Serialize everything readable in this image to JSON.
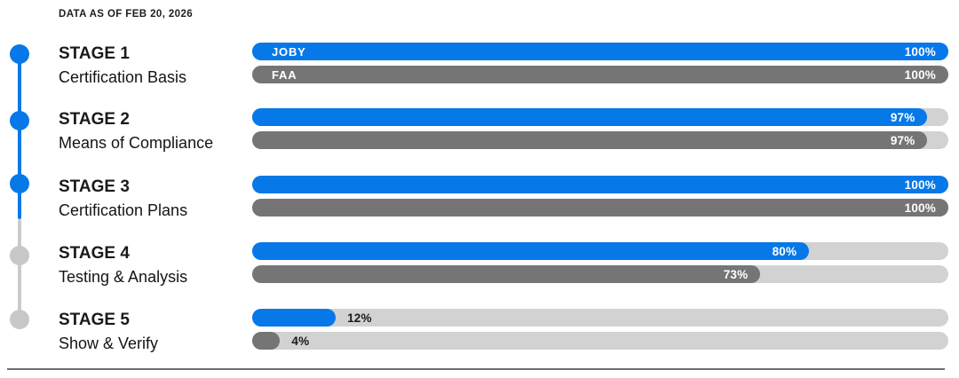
{
  "header": {
    "data_as_of": "DATA AS OF FEB 20, 2026"
  },
  "legend": {
    "joby": "JOBY",
    "faa": "FAA"
  },
  "colors": {
    "joby_bar": "#0778e8",
    "faa_bar": "#757575",
    "track": "#d2d2d2",
    "active_dot": "#0778e8",
    "inactive_dot": "#c7c7c9",
    "text": "#1a1a1a"
  },
  "chart_data": {
    "type": "bar",
    "orientation": "horizontal",
    "title": "DATA AS OF FEB 20, 2026",
    "categories": [
      "STAGE 1 — Certification Basis",
      "STAGE 2 — Means of Compliance",
      "STAGE 3 — Certification Plans",
      "STAGE 4 — Testing & Analysis",
      "STAGE 5 — Show & Verify"
    ],
    "series": [
      {
        "name": "JOBY",
        "values": [
          100,
          97,
          100,
          80,
          12
        ]
      },
      {
        "name": "FAA",
        "values": [
          100,
          97,
          100,
          73,
          4
        ]
      }
    ],
    "xlim": [
      0,
      100
    ],
    "value_suffix": "%",
    "legend_position": "inside-first-bar",
    "grid": false
  },
  "stages": [
    {
      "title": "STAGE 1",
      "subtitle": "Certification Basis",
      "joby_label": "100%",
      "faa_label": "100%"
    },
    {
      "title": "STAGE 2",
      "subtitle": "Means of Compliance",
      "joby_label": "97%",
      "faa_label": "97%"
    },
    {
      "title": "STAGE 3",
      "subtitle": "Certification Plans",
      "joby_label": "100%",
      "faa_label": "100%"
    },
    {
      "title": "STAGE 4",
      "subtitle": "Testing & Analysis",
      "joby_label": "80%",
      "faa_label": "73%"
    },
    {
      "title": "STAGE 5",
      "subtitle": "Show & Verify",
      "joby_label": "12%",
      "faa_label": "4%"
    }
  ]
}
